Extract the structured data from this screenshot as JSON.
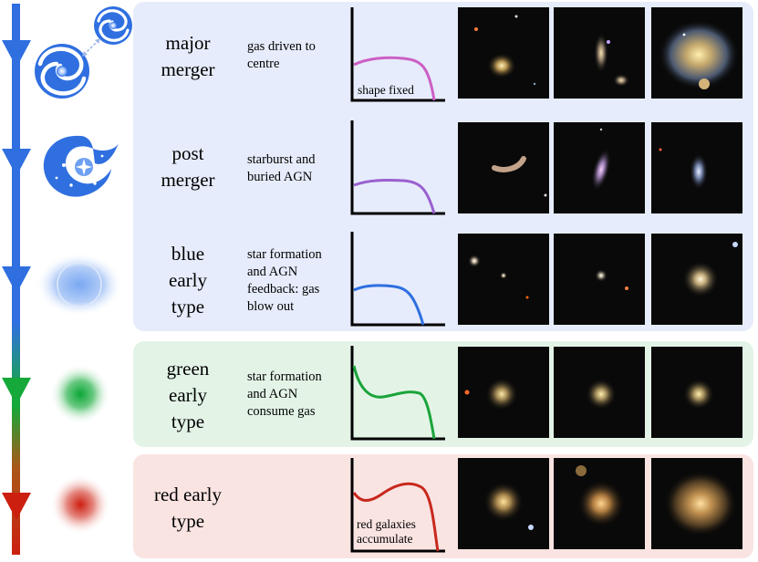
{
  "stages": [
    {
      "name": "major\nmerger",
      "description": "gas driven to\ncentre",
      "sketch_label": "shape fixed",
      "icon": "merging-spiral-galaxies-icon",
      "curve_color": "#cc5fc5",
      "panel_color": "#e6ecfb"
    },
    {
      "name": "post\nmerger",
      "description": "starburst and\nburied AGN",
      "sketch_label": "",
      "icon": "disturbed-galaxy-icon",
      "curve_color": "#9a60cf",
      "panel_color": "#e6ecfb"
    },
    {
      "name": "blue\nearly\ntype",
      "description": "star formation\nand AGN\nfeedback: gas\nblow out",
      "sketch_label": "",
      "icon": "blue-elliptical-galaxy-icon",
      "curve_color": "#2f6fe0",
      "panel_color": "#e6ecfb"
    },
    {
      "name": "green\nearly\ntype",
      "description": "star formation\nand AGN\nconsume gas",
      "sketch_label": "",
      "icon": "green-galaxy-icon",
      "curve_color": "#1aa43a",
      "panel_color": "#e3f4e7"
    },
    {
      "name": "red early\ntype",
      "description": "",
      "sketch_label": "red galaxies\naccumulate",
      "icon": "red-galaxy-icon",
      "curve_color": "#c8281d",
      "panel_color": "#f9e4e2"
    }
  ],
  "colors": {
    "arrow_blue": "#2f6fe0",
    "arrow_green": "#15a83a",
    "arrow_red": "#cc1f10"
  }
}
